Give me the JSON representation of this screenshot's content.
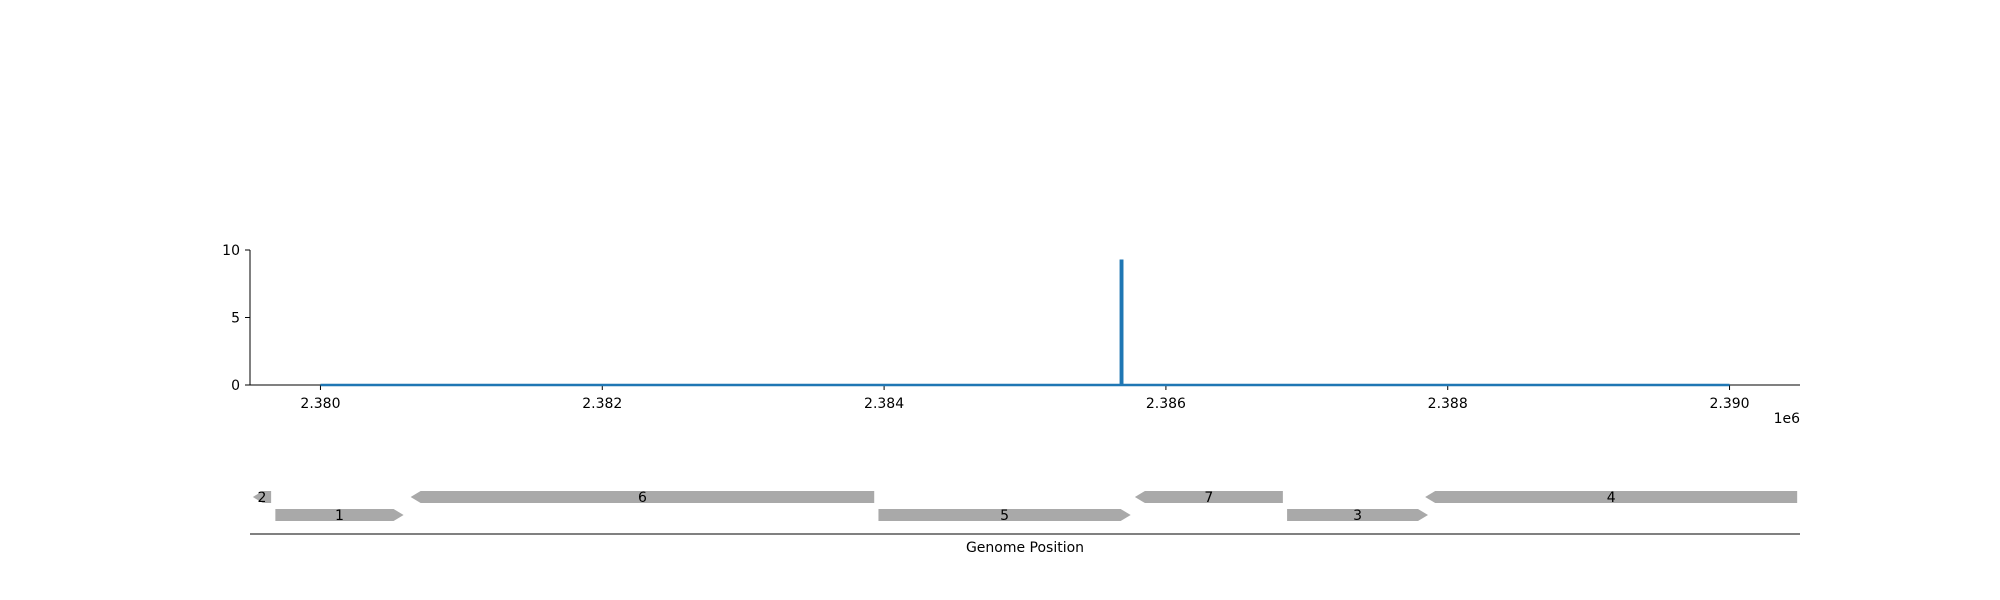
{
  "chart_data": [
    {
      "type": "line",
      "xlim": [
        2379500,
        2390500
      ],
      "ylim": [
        0,
        10
      ],
      "x_ticks": [
        2380000,
        2382000,
        2384000,
        2386000,
        2388000,
        2390000
      ],
      "x_tick_labels": [
        "2.380",
        "2.382",
        "2.384",
        "2.386",
        "2.388",
        "2.390"
      ],
      "x_offset_label": "1e6",
      "y_ticks": [
        0,
        5,
        10
      ],
      "y_tick_labels": [
        "0",
        "5",
        "10"
      ],
      "series": [
        {
          "color": "#1f77b4",
          "points": [
            [
              2380000,
              0
            ],
            [
              2385680,
              0
            ],
            [
              2385680,
              9.2
            ],
            [
              2385690,
              9.2
            ],
            [
              2385690,
              0
            ],
            [
              2390000,
              0
            ]
          ]
        }
      ],
      "grid": false
    },
    {
      "type": "gene_track",
      "xlabel": "Genome Position",
      "xlim": [
        2379500,
        2390500
      ],
      "genes": [
        {
          "label": "2",
          "start": 2379520,
          "end": 2379650,
          "strand": "-",
          "row": 0
        },
        {
          "label": "1",
          "start": 2379680,
          "end": 2380590,
          "strand": "+",
          "row": 1
        },
        {
          "label": "6",
          "start": 2380640,
          "end": 2383930,
          "strand": "-",
          "row": 0
        },
        {
          "label": "5",
          "start": 2383960,
          "end": 2385750,
          "strand": "+",
          "row": 1
        },
        {
          "label": "7",
          "start": 2385780,
          "end": 2386830,
          "strand": "-",
          "row": 0
        },
        {
          "label": "3",
          "start": 2386860,
          "end": 2387860,
          "strand": "+",
          "row": 1
        },
        {
          "label": "4",
          "start": 2387840,
          "end": 2390480,
          "strand": "-",
          "row": 0
        }
      ],
      "gene_color": "#a9a9a9"
    }
  ]
}
